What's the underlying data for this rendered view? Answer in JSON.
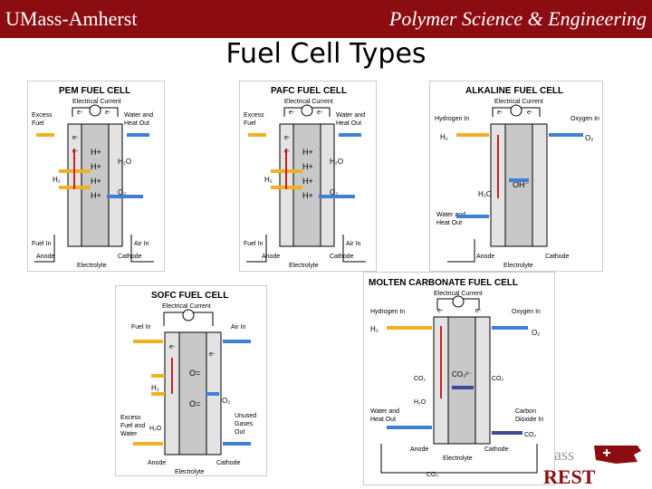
{
  "header": {
    "left": "UMass-Amherst",
    "right": "Polymer Science & Engineering"
  },
  "slide_title": "Fuel Cell Types",
  "colors": {
    "header_bg": "#8b0d12",
    "fuel": "#f0b020",
    "oxidant": "#3f7fd9",
    "electron": "#cc2020",
    "electrolyte": "#c8c8c8",
    "electrode": "#e3e3e3",
    "carbonate": "#3c4a9a"
  },
  "pem": {
    "title": "PEM FUEL CELL",
    "current": "Electrical Current",
    "e": "e-",
    "excess": [
      "Excess",
      "Fuel"
    ],
    "water": [
      "Water and",
      "Heat Out"
    ],
    "h": "H₂",
    "hplus": "H+",
    "h2o": "H₂O",
    "o2": "O₂",
    "fuel_in": "Fuel In",
    "air_in": "Air In",
    "anode": "Anode",
    "electrolyte": "Electrolyte",
    "cathode": "Cathode"
  },
  "pafc": {
    "title": "PAFC FUEL CELL",
    "current": "Electrical Current",
    "e": "e-",
    "excess": [
      "Excess",
      "Fuel"
    ],
    "water": [
      "Water and",
      "Heat Out"
    ],
    "h": "H₂",
    "hplus": "H+",
    "h2o": "H₂O",
    "o2": "O₂",
    "fuel_in": "Fuel In",
    "air_in": "Air In",
    "anode": "Anode",
    "electrolyte": "Electrolyte",
    "cathode": "Cathode"
  },
  "alkaline": {
    "title": "ALKALINE FUEL CELL",
    "current": "Electrical Current",
    "e": "e-",
    "h_in": "Hydrogen In",
    "o_in": "Oxygen In",
    "h2": "H₂",
    "o2": "O₂",
    "ion": "OH⁻",
    "h2o": "H₂O",
    "water": [
      "Water and",
      "Heat Out"
    ],
    "anode": "Anode",
    "electrolyte": "Electrolyte",
    "cathode": "Cathode"
  },
  "sofc": {
    "title": "SOFC FUEL CELL",
    "current": "Electrical Current",
    "e": "e-",
    "fuel_in": "Fuel In",
    "air_in": "Air In",
    "ion": "O=",
    "h2": "H₂",
    "o2": "O₂",
    "h2o": "H₂O",
    "excess": [
      "Excess",
      "Fuel and",
      "Water"
    ],
    "unused": [
      "Unused",
      "Gases",
      "Out"
    ],
    "anode": "Anode",
    "electrolyte": "Electrolyte",
    "cathode": "Cathode"
  },
  "mcfc": {
    "title": "MOLTEN CARBONATE FUEL CELL",
    "current": "Electrical Current",
    "e": "e-",
    "h_in": "Hydrogen In",
    "o_in": "Oxygen In",
    "h2": "H₂",
    "o2": "O₂",
    "co3": "CO₃²⁻",
    "co2": "CO₂",
    "h2o": "H₂O",
    "water": [
      "Water and",
      "Heat Out"
    ],
    "co2_out": [
      "Carbon",
      "Dioxide In"
    ],
    "anode": "Anode",
    "electrolyte": "Electrolyte",
    "cathode": "Cathode"
  },
  "logo": {
    "text1": "ass",
    "text2": "REST"
  }
}
